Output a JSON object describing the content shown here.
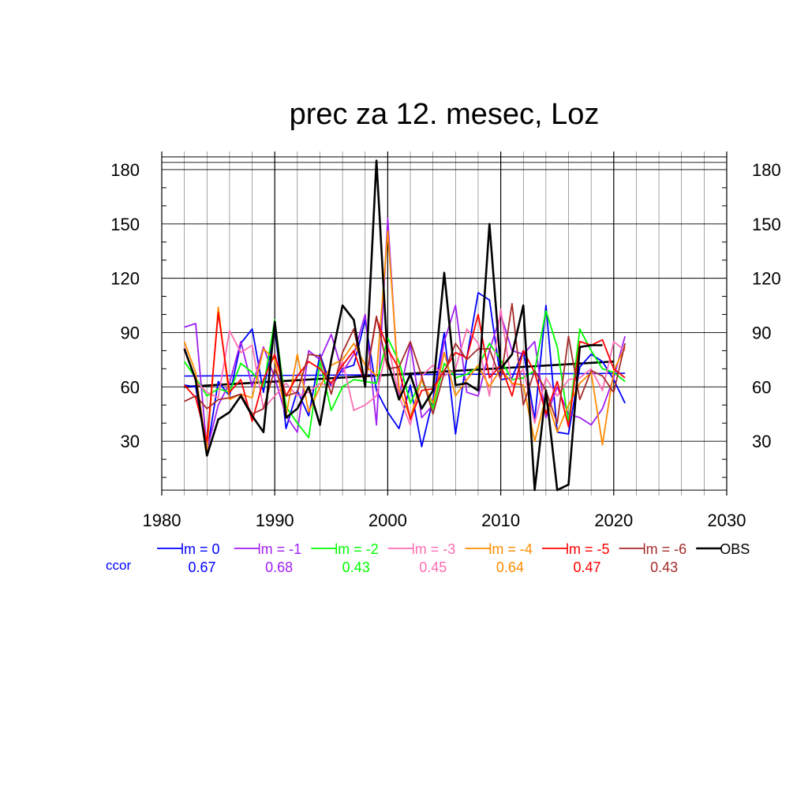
{
  "chart_data": {
    "type": "line",
    "title": "prec za 12. mesec, Loz",
    "xlabel": "",
    "ylabel": "",
    "xlim": [
      1980,
      2030
    ],
    "ylim": [
      0,
      190
    ],
    "x_ticks": [
      1980,
      1990,
      2000,
      2010,
      2020,
      2030
    ],
    "y_ticks": [
      30,
      60,
      90,
      120,
      150,
      180
    ],
    "grid": true,
    "x": [
      1982,
      1983,
      1984,
      1985,
      1986,
      1987,
      1988,
      1989,
      1990,
      1991,
      1992,
      1993,
      1994,
      1995,
      1996,
      1997,
      1998,
      1999,
      2000,
      2001,
      2002,
      2003,
      2004,
      2005,
      2006,
      2007,
      2008,
      2009,
      2010,
      2011,
      2012,
      2013,
      2014,
      2015,
      2016,
      2017,
      2018,
      2019,
      2020,
      2021
    ],
    "series": [
      {
        "name": "lm = 0",
        "color": "#0000ff",
        "width": 1.8,
        "values": [
          61,
          60,
          24,
          63,
          55,
          84,
          92,
          57,
          93,
          37,
          58,
          44,
          78,
          60,
          70,
          72,
          97,
          58,
          46,
          37,
          61,
          27,
          53,
          90,
          34,
          76,
          112,
          108,
          64,
          65,
          80,
          42,
          105,
          35,
          34,
          71,
          78,
          74,
          64,
          51
        ]
      },
      {
        "name": "lm = -1",
        "color": "#a020f0",
        "width": 1.8,
        "values": [
          93,
          95,
          25,
          50,
          62,
          85,
          60,
          82,
          65,
          44,
          35,
          80,
          75,
          89,
          68,
          78,
          100,
          39,
          153,
          54,
          84,
          43,
          50,
          85,
          105,
          57,
          55,
          80,
          100,
          80,
          78,
          85,
          43,
          60,
          45,
          43,
          39,
          48,
          65,
          88
        ]
      },
      {
        "name": "lm = -2",
        "color": "#00ff00",
        "width": 1.8,
        "values": [
          74,
          65,
          55,
          59,
          57,
          73,
          68,
          60,
          97,
          49,
          40,
          32,
          74,
          47,
          60,
          64,
          63,
          62,
          87,
          74,
          51,
          64,
          48,
          73,
          65,
          67,
          71,
          84,
          75,
          64,
          65,
          69,
          102,
          82,
          40,
          92,
          80,
          70,
          68,
          63
        ]
      },
      {
        "name": "lm = -3",
        "color": "#ff6eb4",
        "width": 1.8,
        "values": [
          82,
          63,
          57,
          54,
          91,
          79,
          83,
          48,
          55,
          62,
          55,
          57,
          62,
          60,
          74,
          47,
          50,
          55,
          84,
          55,
          39,
          66,
          72,
          66,
          70,
          92,
          84,
          55,
          103,
          60,
          70,
          40,
          65,
          55,
          64,
          65,
          70,
          58,
          85,
          80
        ]
      },
      {
        "name": "lm = -4",
        "color": "#ff8c00",
        "width": 1.8,
        "values": [
          85,
          68,
          24,
          104,
          53,
          56,
          54,
          81,
          75,
          44,
          78,
          46,
          60,
          72,
          75,
          84,
          72,
          66,
          146,
          59,
          43,
          64,
          51,
          79,
          55,
          64,
          72,
          60,
          70,
          62,
          61,
          30,
          55,
          35,
          50,
          62,
          68,
          28,
          69,
          82
        ]
      },
      {
        "name": "lm = -5",
        "color": "#ff0000",
        "width": 1.8,
        "values": [
          61,
          54,
          30,
          101,
          57,
          64,
          41,
          64,
          78,
          55,
          66,
          74,
          70,
          62,
          72,
          80,
          62,
          98,
          81,
          70,
          42,
          58,
          59,
          69,
          79,
          76,
          100,
          65,
          72,
          55,
          80,
          68,
          45,
          63,
          38,
          85,
          83,
          86,
          70,
          65
        ]
      },
      {
        "name": "lm = -6",
        "color": "#a52a2a",
        "width": 1.8,
        "values": [
          52,
          55,
          48,
          53,
          54,
          56,
          45,
          48,
          70,
          55,
          57,
          78,
          77,
          56,
          79,
          92,
          62,
          99,
          70,
          71,
          85,
          66,
          45,
          68,
          84,
          75,
          81,
          81,
          64,
          106,
          50,
          69,
          58,
          40,
          88,
          53,
          69,
          66,
          57,
          84
        ]
      },
      {
        "name": "OBS",
        "color": "#000000",
        "width": 2.6,
        "values": [
          81,
          64,
          22,
          42,
          46,
          55,
          44,
          35,
          96,
          43,
          48,
          60,
          39,
          75,
          105,
          97,
          60,
          185,
          74,
          53,
          67,
          48,
          58,
          123,
          61,
          62,
          58,
          150,
          70,
          78,
          105,
          3,
          58,
          3,
          6,
          82,
          83,
          83,
          null,
          null
        ]
      }
    ],
    "trend_lines": [
      {
        "series": "lm = 0",
        "color": "#0000ff",
        "x": [
          1982,
          2021
        ],
        "y": [
          66.0,
          67.5
        ]
      },
      {
        "series": "OBS",
        "color": "#000000",
        "x": [
          1982,
          2020
        ],
        "y": [
          60.0,
          74.0
        ]
      }
    ],
    "legend_placement": "bottom",
    "ccor": {
      "label": "ccor",
      "values": [
        "0.67",
        "0.68",
        "0.43",
        "0.45",
        "0.64",
        "0.47",
        "0.43"
      ]
    }
  }
}
